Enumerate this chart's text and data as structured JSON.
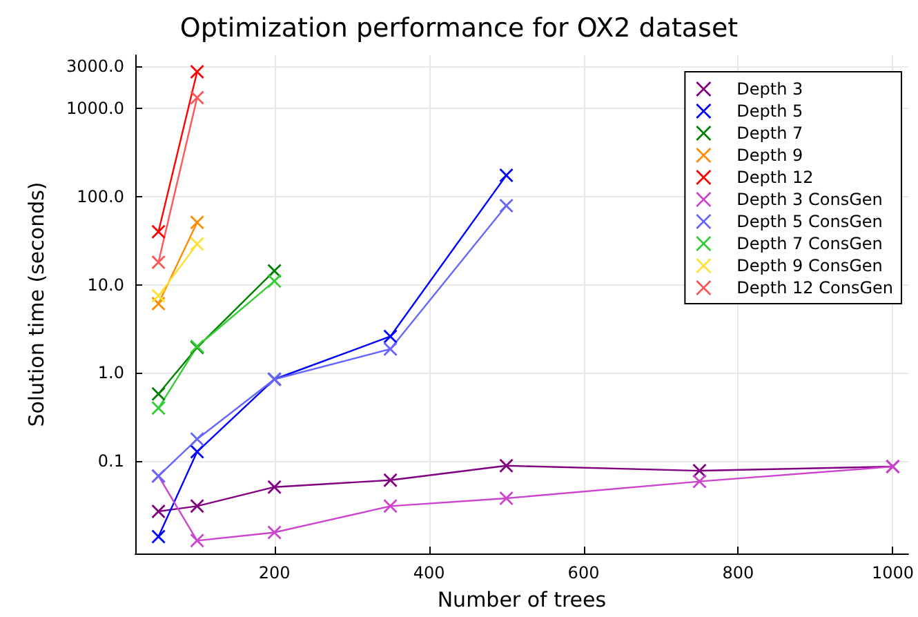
{
  "chart_data": {
    "type": "line",
    "title": "Optimization performance for OX2 dataset",
    "xlabel": "Number of trees",
    "ylabel": "Solution time (seconds)",
    "log": "y",
    "grid": true,
    "legend": "top right",
    "marker": "cross",
    "line_style": "solid",
    "xlim": [
      20,
      1020
    ],
    "xticks": [
      200,
      400,
      600,
      800,
      1000
    ],
    "ylim": [
      0.009,
      4000
    ],
    "yticks": [
      {
        "value": 0.1,
        "label": "0.1"
      },
      {
        "value": 1,
        "label": "1.0"
      },
      {
        "value": 10,
        "label": "10.0"
      },
      {
        "value": 100,
        "label": "100.0"
      },
      {
        "value": 1000,
        "label": "1000.0"
      },
      {
        "value": 3000,
        "label": "3000.0"
      }
    ],
    "series": [
      {
        "name": "Depth 3",
        "color": "#800080",
        "x": [
          50,
          100,
          200,
          350,
          500,
          750,
          1000
        ],
        "values": [
          0.027,
          0.031,
          0.051,
          0.061,
          0.089,
          0.078,
          0.087
        ]
      },
      {
        "name": "Depth 5",
        "color": "#0000ff",
        "x": [
          50,
          100,
          200,
          350,
          500
        ],
        "values": [
          0.014,
          0.128,
          0.85,
          2.6,
          174
        ]
      },
      {
        "name": "Depth 7",
        "color": "#008000",
        "x": [
          50,
          100,
          200
        ],
        "values": [
          0.58,
          1.95,
          14.4
        ]
      },
      {
        "name": "Depth 9",
        "color": "#ff8c00",
        "x": [
          50,
          100
        ],
        "values": [
          6.1,
          51
        ]
      },
      {
        "name": "Depth 12",
        "color": "#ff0000",
        "x": [
          50,
          100
        ],
        "values": [
          40,
          2600
        ]
      },
      {
        "name": "Depth 3 ConsGen",
        "color": "#cc44cc",
        "x": [
          50,
          100,
          200,
          350,
          500,
          750,
          1000
        ],
        "values": [
          0.068,
          0.0126,
          0.0156,
          0.031,
          0.038,
          0.059,
          0.087
        ]
      },
      {
        "name": "Depth 5 ConsGen",
        "color": "#6666ff",
        "x": [
          50,
          100,
          200,
          350,
          500
        ],
        "values": [
          0.068,
          0.178,
          0.85,
          1.87,
          79
        ]
      },
      {
        "name": "Depth 7 ConsGen",
        "color": "#33cc33",
        "x": [
          50,
          100,
          200
        ],
        "values": [
          0.4,
          2.0,
          11
        ]
      },
      {
        "name": "Depth 9 ConsGen",
        "color": "#ffe033",
        "x": [
          50,
          100
        ],
        "values": [
          7.5,
          29
        ]
      },
      {
        "name": "Depth 12 ConsGen",
        "color": "#ff5555",
        "x": [
          50,
          100
        ],
        "values": [
          18,
          1320
        ]
      }
    ]
  }
}
